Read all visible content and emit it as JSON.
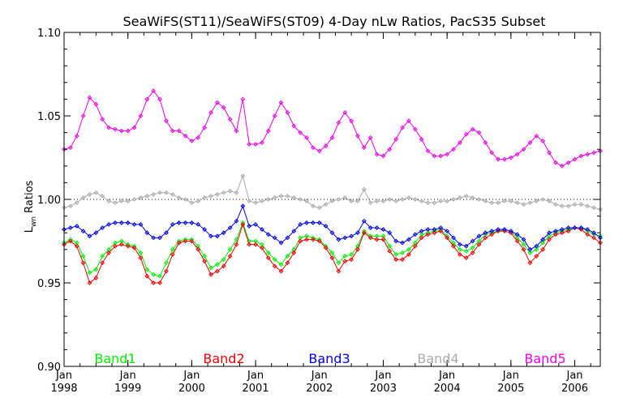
{
  "chart_data": {
    "type": "line",
    "title": "SeaWiFS(ST11)/SeaWiFS(ST09) 4-Day nLw Ratios, PacS35 Subset",
    "ylabel_main": "L",
    "ylabel_sub": "wn",
    "ylabel_rest": " Ratios",
    "xlabel": "",
    "xlim": [
      1998.0,
      2006.4
    ],
    "ylim": [
      0.9,
      1.1
    ],
    "reference_line": 1.0,
    "y_ticks": [
      0.9,
      0.95,
      1.0,
      1.05,
      1.1
    ],
    "y_tick_labels": [
      "0.90",
      "0.95",
      "1.00",
      "1.05",
      "1.10"
    ],
    "x_ticks": [
      {
        "value": 1998,
        "month": "Jan",
        "year": "1998"
      },
      {
        "value": 1999,
        "month": "Jan",
        "year": "1999"
      },
      {
        "value": 2000,
        "month": "Jan",
        "year": "2000"
      },
      {
        "value": 2001,
        "month": "Jan",
        "year": "2001"
      },
      {
        "value": 2002,
        "month": "Jan",
        "year": "2002"
      },
      {
        "value": 2003,
        "month": "Jan",
        "year": "2003"
      },
      {
        "value": 2004,
        "month": "Jan",
        "year": "2004"
      },
      {
        "value": 2005,
        "month": "Jan",
        "year": "2005"
      },
      {
        "value": 2006,
        "month": "Jan",
        "year": "2006"
      }
    ],
    "x": [
      1998.0,
      1998.1,
      1998.2,
      1998.3,
      1998.4,
      1998.5,
      1998.6,
      1998.7,
      1998.8,
      1998.9,
      1999.0,
      1999.1,
      1999.2,
      1999.3,
      1999.4,
      1999.5,
      1999.6,
      1999.7,
      1999.8,
      1999.9,
      2000.0,
      2000.1,
      2000.2,
      2000.3,
      2000.4,
      2000.5,
      2000.6,
      2000.7,
      2000.8,
      2000.9,
      2001.0,
      2001.1,
      2001.2,
      2001.3,
      2001.4,
      2001.5,
      2001.6,
      2001.7,
      2001.8,
      2001.9,
      2002.0,
      2002.1,
      2002.2,
      2002.3,
      2002.4,
      2002.5,
      2002.6,
      2002.7,
      2002.8,
      2002.9,
      2003.0,
      2003.1,
      2003.2,
      2003.3,
      2003.4,
      2003.5,
      2003.6,
      2003.7,
      2003.8,
      2003.9,
      2004.0,
      2004.1,
      2004.2,
      2004.3,
      2004.4,
      2004.5,
      2004.6,
      2004.7,
      2004.8,
      2004.9,
      2005.0,
      2005.1,
      2005.2,
      2005.3,
      2005.4,
      2005.5,
      2005.6,
      2005.7,
      2005.8,
      2005.9,
      2006.0,
      2006.1,
      2006.2,
      2006.3,
      2006.4
    ],
    "series": [
      {
        "name": "Band1",
        "color": "#00ee00",
        "values": [
          0.974,
          0.976,
          0.974,
          0.966,
          0.956,
          0.958,
          0.966,
          0.97,
          0.974,
          0.975,
          0.973,
          0.972,
          0.968,
          0.958,
          0.955,
          0.954,
          0.962,
          0.97,
          0.975,
          0.976,
          0.976,
          0.972,
          0.966,
          0.959,
          0.961,
          0.964,
          0.97,
          0.976,
          0.986,
          0.975,
          0.975,
          0.973,
          0.968,
          0.964,
          0.961,
          0.966,
          0.97,
          0.977,
          0.978,
          0.977,
          0.976,
          0.972,
          0.968,
          0.962,
          0.966,
          0.967,
          0.972,
          0.981,
          0.978,
          0.978,
          0.978,
          0.972,
          0.967,
          0.968,
          0.97,
          0.974,
          0.979,
          0.98,
          0.981,
          0.982,
          0.978,
          0.974,
          0.97,
          0.969,
          0.971,
          0.975,
          0.979,
          0.98,
          0.981,
          0.982,
          0.981,
          0.977,
          0.973,
          0.968,
          0.97,
          0.974,
          0.978,
          0.98,
          0.981,
          0.982,
          0.983,
          0.983,
          0.981,
          0.979,
          0.978
        ]
      },
      {
        "name": "Band2",
        "color": "#ee0000",
        "values": [
          0.973,
          0.975,
          0.972,
          0.962,
          0.95,
          0.953,
          0.962,
          0.968,
          0.972,
          0.973,
          0.972,
          0.971,
          0.965,
          0.954,
          0.95,
          0.95,
          0.957,
          0.967,
          0.974,
          0.975,
          0.975,
          0.97,
          0.963,
          0.955,
          0.957,
          0.96,
          0.966,
          0.973,
          0.985,
          0.973,
          0.973,
          0.971,
          0.965,
          0.96,
          0.957,
          0.962,
          0.968,
          0.975,
          0.976,
          0.976,
          0.975,
          0.971,
          0.965,
          0.957,
          0.963,
          0.964,
          0.97,
          0.98,
          0.977,
          0.976,
          0.976,
          0.969,
          0.964,
          0.964,
          0.967,
          0.972,
          0.977,
          0.979,
          0.98,
          0.981,
          0.977,
          0.972,
          0.967,
          0.965,
          0.968,
          0.973,
          0.977,
          0.979,
          0.981,
          0.981,
          0.98,
          0.975,
          0.97,
          0.962,
          0.966,
          0.97,
          0.976,
          0.979,
          0.98,
          0.981,
          0.983,
          0.982,
          0.979,
          0.977,
          0.974
        ]
      },
      {
        "name": "Band3",
        "color": "#0000ee",
        "values": [
          0.982,
          0.983,
          0.984,
          0.981,
          0.978,
          0.98,
          0.983,
          0.985,
          0.986,
          0.986,
          0.986,
          0.985,
          0.985,
          0.98,
          0.977,
          0.977,
          0.98,
          0.985,
          0.986,
          0.986,
          0.986,
          0.985,
          0.982,
          0.978,
          0.978,
          0.98,
          0.983,
          0.987,
          0.996,
          0.984,
          0.985,
          0.982,
          0.979,
          0.977,
          0.974,
          0.977,
          0.981,
          0.985,
          0.986,
          0.986,
          0.986,
          0.984,
          0.98,
          0.976,
          0.977,
          0.978,
          0.98,
          0.987,
          0.983,
          0.983,
          0.982,
          0.98,
          0.975,
          0.974,
          0.976,
          0.979,
          0.981,
          0.982,
          0.982,
          0.983,
          0.981,
          0.977,
          0.973,
          0.972,
          0.975,
          0.978,
          0.98,
          0.981,
          0.982,
          0.982,
          0.981,
          0.979,
          0.976,
          0.97,
          0.972,
          0.976,
          0.98,
          0.981,
          0.982,
          0.983,
          0.983,
          0.983,
          0.982,
          0.98,
          0.977
        ]
      },
      {
        "name": "Band4",
        "color": "#aaaaaa",
        "values": [
          0.995,
          0.996,
          0.998,
          1.001,
          1.003,
          1.004,
          1.002,
          0.999,
          0.998,
          0.999,
          0.999,
          1.0,
          1.001,
          1.002,
          1.003,
          1.004,
          1.004,
          1.003,
          1.001,
          1.0,
          0.998,
          0.999,
          1.001,
          1.002,
          1.003,
          1.004,
          1.005,
          1.004,
          1.014,
          0.999,
          0.998,
          0.999,
          1.0,
          1.001,
          1.002,
          1.002,
          1.001,
          1.0,
          0.999,
          0.996,
          0.995,
          0.997,
          0.999,
          1.0,
          1.001,
          0.999,
          0.999,
          1.006,
          0.998,
          0.999,
          0.999,
          1.0,
          0.999,
          1.0,
          1.001,
          1.0,
          0.999,
          0.998,
          0.998,
          0.999,
          0.999,
          1.0,
          1.001,
          1.002,
          1.001,
          1.0,
          0.999,
          0.998,
          0.998,
          0.999,
          0.999,
          0.998,
          0.997,
          0.998,
          0.999,
          1.0,
          0.999,
          0.997,
          0.996,
          0.996,
          0.997,
          0.997,
          0.996,
          0.995,
          0.994
        ]
      },
      {
        "name": "Band5",
        "color": "#ee00ee",
        "values": [
          1.03,
          1.031,
          1.038,
          1.05,
          1.061,
          1.057,
          1.048,
          1.043,
          1.042,
          1.041,
          1.041,
          1.043,
          1.05,
          1.06,
          1.065,
          1.06,
          1.047,
          1.041,
          1.041,
          1.038,
          1.035,
          1.037,
          1.043,
          1.052,
          1.058,
          1.055,
          1.048,
          1.041,
          1.06,
          1.033,
          1.033,
          1.034,
          1.041,
          1.05,
          1.058,
          1.052,
          1.044,
          1.04,
          1.037,
          1.031,
          1.029,
          1.032,
          1.037,
          1.046,
          1.052,
          1.047,
          1.038,
          1.031,
          1.037,
          1.027,
          1.026,
          1.03,
          1.036,
          1.043,
          1.047,
          1.042,
          1.036,
          1.029,
          1.026,
          1.026,
          1.027,
          1.03,
          1.034,
          1.039,
          1.042,
          1.04,
          1.034,
          1.028,
          1.024,
          1.024,
          1.025,
          1.027,
          1.03,
          1.034,
          1.038,
          1.035,
          1.028,
          1.022,
          1.02,
          1.022,
          1.024,
          1.026,
          1.027,
          1.028,
          1.029
        ]
      }
    ],
    "legend_placement": "bottom",
    "grid": false
  }
}
